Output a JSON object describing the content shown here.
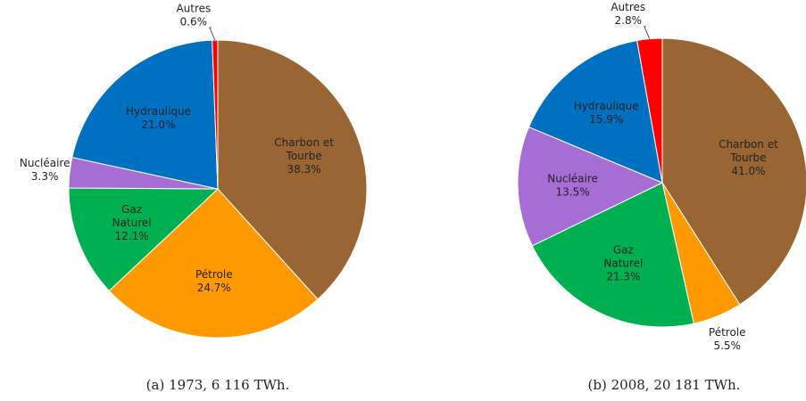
{
  "chart_data": [
    {
      "type": "pie",
      "title": "(a) 1973, 6 116 TWh.",
      "categories": [
        "Charbon et Tourbe",
        "Pétrole",
        "Gaz Naturel",
        "Nucléaire",
        "Hydraulique",
        "Autres"
      ],
      "values": [
        38.3,
        24.7,
        12.1,
        3.3,
        21.0,
        0.6
      ],
      "value_labels": [
        "38.3%",
        "24.7%",
        "12.1%",
        "3.3%",
        "21.0%",
        "0.6%"
      ],
      "colors": [
        "#996633",
        "#ff9900",
        "#00b050",
        "#a66dd4",
        "#0070c0",
        "#ff0000"
      ]
    },
    {
      "type": "pie",
      "title": "(b) 2008, 20 181 TWh.",
      "categories": [
        "Charbon et Tourbe",
        "Pétrole",
        "Gaz Naturel",
        "Nucléaire",
        "Hydraulique",
        "Autres"
      ],
      "values": [
        41.0,
        5.5,
        21.3,
        13.5,
        15.9,
        2.8
      ],
      "value_labels": [
        "41.0%",
        "5.5%",
        "21.3%",
        "13.5%",
        "15.9%",
        "2.8%"
      ],
      "colors": [
        "#996633",
        "#ff9900",
        "#00b050",
        "#a66dd4",
        "#0070c0",
        "#ff0000"
      ]
    }
  ]
}
